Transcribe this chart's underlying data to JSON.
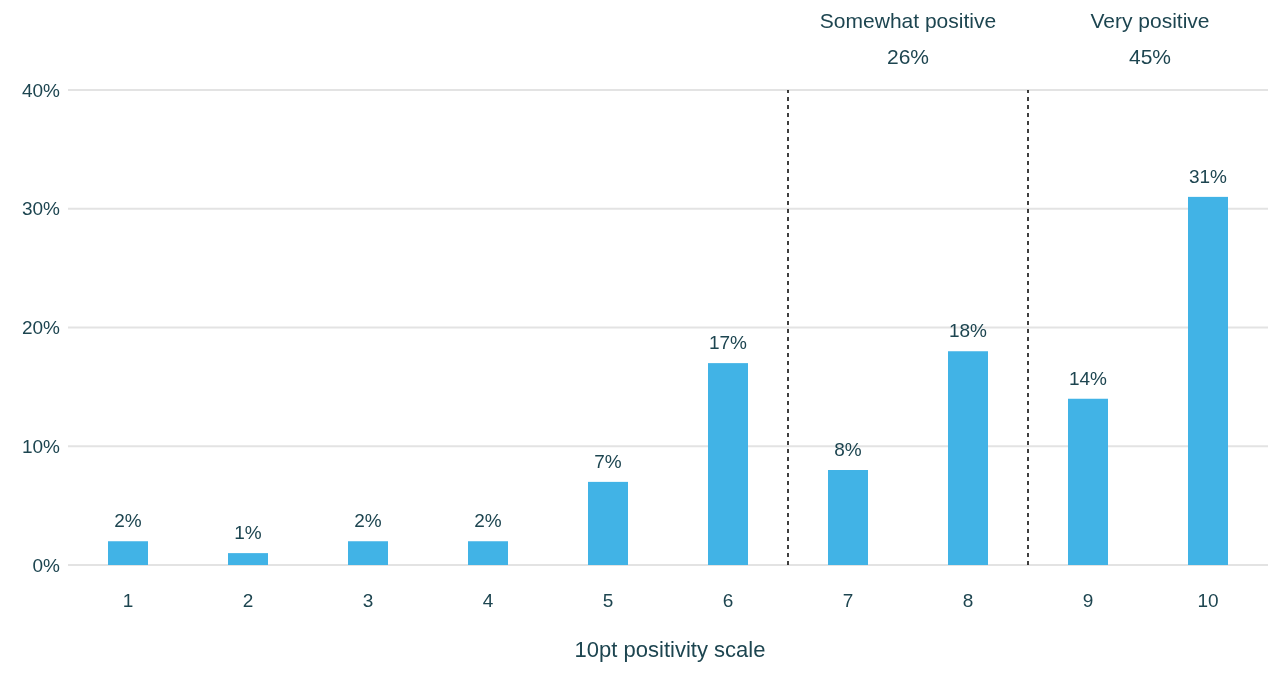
{
  "chart_data": {
    "type": "bar",
    "xlabel": "10pt positivity scale",
    "x": [
      1,
      2,
      3,
      4,
      5,
      6,
      7,
      8,
      9,
      10
    ],
    "values": [
      2,
      1,
      2,
      2,
      7,
      17,
      8,
      18,
      14,
      31
    ],
    "color": "#41b3e6",
    "value_labels": [
      "2%",
      "1%",
      "2%",
      "2%",
      "7%",
      "17%",
      "8%",
      "18%",
      "14%",
      "31%"
    ],
    "xlim": [
      0.5,
      10.5
    ],
    "xticks": [
      1,
      2,
      3,
      4,
      5,
      6,
      7,
      8,
      9,
      10
    ],
    "ylim": [
      0,
      40
    ],
    "yticks": [
      {
        "value": 0,
        "label": "0%"
      },
      {
        "value": 10,
        "label": "10%"
      },
      {
        "value": 20,
        "label": "20%"
      },
      {
        "value": 30,
        "label": "30%"
      },
      {
        "value": 40,
        "label": "40%"
      }
    ],
    "grid": "y",
    "ref_lines": [
      {
        "axis": "x",
        "value": 6.5,
        "color": "#000000",
        "line_style": "dashed"
      },
      {
        "axis": "x",
        "value": 8.5,
        "color": "#000000",
        "line_style": "dashed"
      }
    ],
    "annotations": [
      "Somewhat positive\n26%",
      "Very positive\n45%"
    ]
  }
}
